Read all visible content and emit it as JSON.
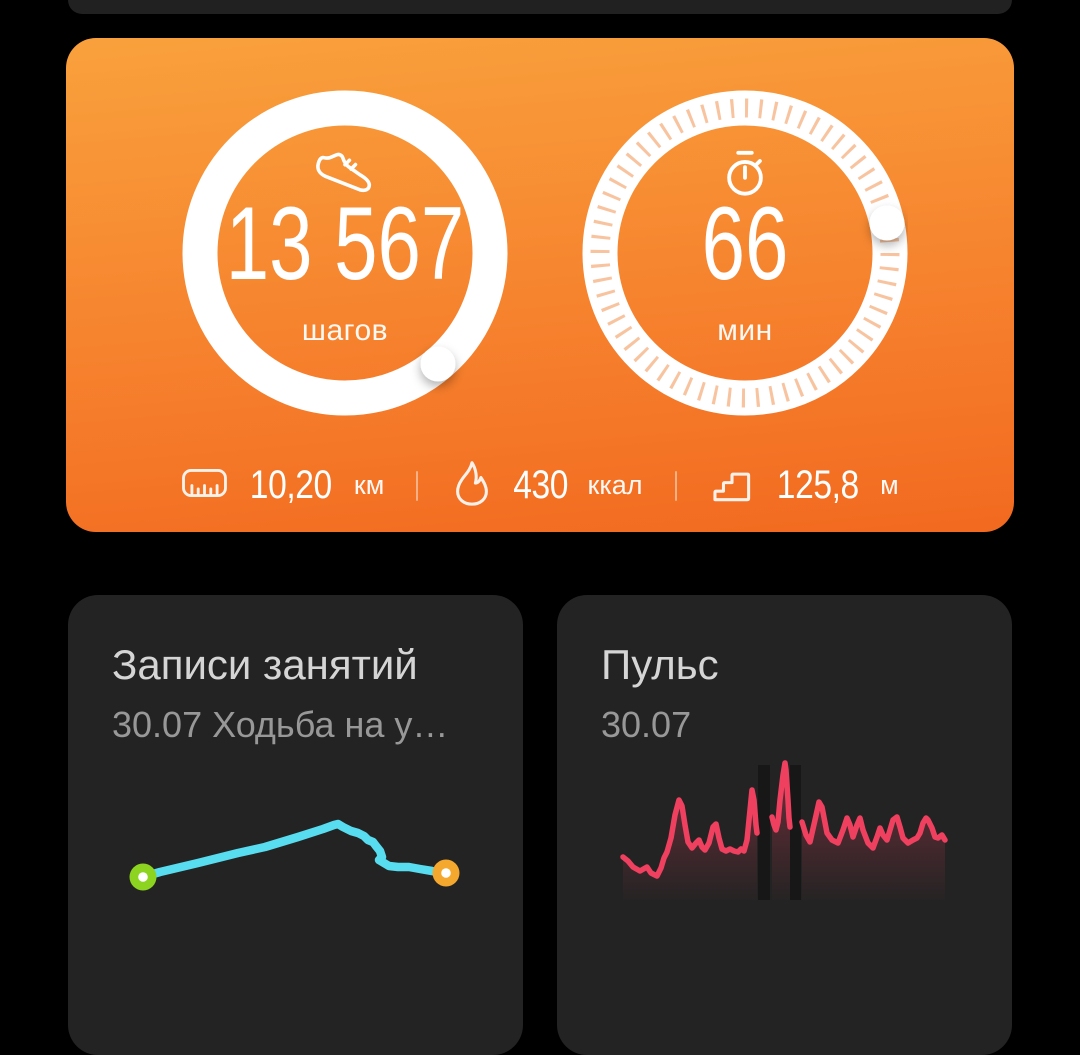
{
  "background": "#000000",
  "summary_card": {
    "colors": {
      "gradient_top": "#F9A13C",
      "gradient_bottom": "#F2691F",
      "ring": "#FFFFFF",
      "ring_ticks": "rgba(242,138,66,0.5)"
    },
    "steps": {
      "icon": "shoe-icon",
      "value": "13 567",
      "label": "шагов"
    },
    "minutes": {
      "icon": "stopwatch-icon",
      "value": "66",
      "label": "мин"
    },
    "stats": [
      {
        "icon": "ruler-icon",
        "value": "10,20",
        "unit": "км"
      },
      {
        "icon": "flame-icon",
        "value": "430",
        "unit": "ккал"
      },
      {
        "icon": "stairs-icon",
        "value": "125,8",
        "unit": "м"
      }
    ]
  },
  "activity_card": {
    "title": "Записи занятий",
    "subtitle": "30.07 Ходьба на у…"
  },
  "pulse_card": {
    "title": "Пульс",
    "subtitle": "30.07"
  },
  "chart_data": [
    {
      "type": "line",
      "name": "workout-route-preview",
      "title": "Записи занятий — маршрут 30.07",
      "colors": {
        "line": "#58DCEF",
        "start_dot": "#8CD420",
        "end_dot": "#F5A82E",
        "dot_center": "#FFFFFF"
      },
      "series": [
        {
          "name": "route",
          "points": [
            [
              75,
              112
            ],
            [
              92,
              107
            ],
            [
              130,
              98
            ],
            [
              170,
              88
            ],
            [
              197,
              82
            ],
            [
              230,
              72
            ],
            [
              255,
              64
            ],
            [
              266,
              60
            ],
            [
              270,
              59
            ],
            [
              275,
              62
            ],
            [
              283,
              66
            ],
            [
              290,
              68
            ],
            [
              296,
              71
            ],
            [
              300,
              75
            ],
            [
              305,
              77
            ],
            [
              308,
              81
            ],
            [
              312,
              86
            ],
            [
              314,
              92
            ],
            [
              311,
              95
            ],
            [
              316,
              98
            ],
            [
              321,
              101
            ],
            [
              330,
              102
            ],
            [
              341,
              102
            ],
            [
              352,
              104
            ],
            [
              364,
              106
            ],
            [
              373,
              108
            ],
            [
              378,
              108
            ]
          ]
        }
      ],
      "markers": {
        "start": [
          75,
          112
        ],
        "end": [
          378,
          108
        ]
      }
    },
    {
      "type": "line",
      "name": "heart-rate",
      "title": "Пульс 30.07",
      "colors": {
        "line": "#F04060",
        "fill_top": "rgba(240,64,96,0.38)",
        "fill_bottom": "rgba(240,64,96,0)",
        "gap_bar": "#171717"
      },
      "baseline_y": 150,
      "series": [
        {
          "name": "segment-1",
          "points": [
            [
              66,
              107
            ],
            [
              71,
              111
            ],
            [
              76,
              117
            ],
            [
              83,
              121
            ],
            [
              90,
              117
            ],
            [
              94,
              123
            ],
            [
              100,
              126
            ],
            [
              104,
              118
            ],
            [
              107,
              108
            ],
            [
              110,
              102
            ],
            [
              114,
              88
            ],
            [
              118,
              65
            ],
            [
              122,
              50
            ],
            [
              125,
              56
            ],
            [
              128,
              75
            ],
            [
              131,
              92
            ],
            [
              135,
              98
            ],
            [
              139,
              93
            ],
            [
              142,
              90
            ],
            [
              145,
              97
            ],
            [
              148,
              100
            ],
            [
              152,
              93
            ],
            [
              156,
              77
            ],
            [
              159,
              74
            ],
            [
              162,
              88
            ],
            [
              165,
              99
            ],
            [
              169,
              101
            ],
            [
              173,
              99
            ],
            [
              177,
              101
            ],
            [
              181,
              102
            ],
            [
              184,
              99
            ],
            [
              187,
              101
            ],
            [
              190,
              90
            ],
            [
              193,
              60
            ],
            [
              195,
              40
            ],
            [
              197,
              50
            ],
            [
              199,
              75
            ],
            [
              200,
              83
            ]
          ]
        },
        {
          "name": "segment-2",
          "points": [
            [
              215,
              67
            ],
            [
              217,
              75
            ],
            [
              219,
              80
            ],
            [
              221,
              72
            ],
            [
              223,
              50
            ],
            [
              226,
              25
            ],
            [
              228,
              13
            ],
            [
              229,
              20
            ],
            [
              231,
              50
            ],
            [
              232,
              68
            ],
            [
              233,
              77
            ]
          ]
        },
        {
          "name": "segment-3",
          "points": [
            [
              245,
              72
            ],
            [
              249,
              85
            ],
            [
              253,
              92
            ],
            [
              258,
              70
            ],
            [
              262,
              52
            ],
            [
              265,
              57
            ],
            [
              270,
              83
            ],
            [
              275,
              90
            ],
            [
              281,
              93
            ],
            [
              286,
              80
            ],
            [
              290,
              68
            ],
            [
              293,
              75
            ],
            [
              296,
              87
            ],
            [
              300,
              75
            ],
            [
              303,
              68
            ],
            [
              306,
              80
            ],
            [
              311,
              93
            ],
            [
              316,
              98
            ],
            [
              320,
              87
            ],
            [
              323,
              78
            ],
            [
              326,
              85
            ],
            [
              330,
              90
            ],
            [
              333,
              80
            ],
            [
              336,
              70
            ],
            [
              340,
              67
            ],
            [
              343,
              77
            ],
            [
              346,
              88
            ],
            [
              351,
              93
            ],
            [
              356,
              90
            ],
            [
              360,
              88
            ],
            [
              363,
              83
            ],
            [
              366,
              73
            ],
            [
              369,
              68
            ],
            [
              371,
              70
            ],
            [
              375,
              78
            ],
            [
              378,
              87
            ],
            [
              381,
              88
            ],
            [
              385,
              85
            ],
            [
              388,
              90
            ]
          ]
        }
      ],
      "gaps": [
        {
          "x": 201,
          "width": 12
        },
        {
          "x": 233,
          "width": 11
        }
      ]
    }
  ]
}
